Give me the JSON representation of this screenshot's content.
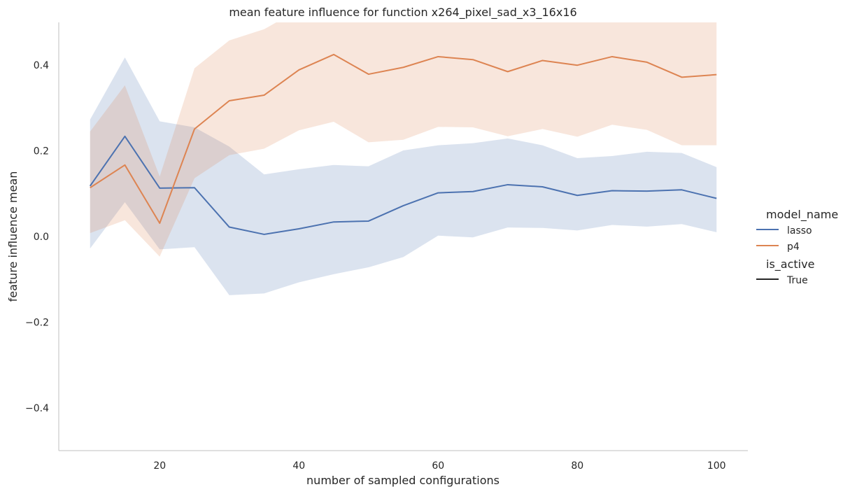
{
  "chart_data": {
    "type": "line",
    "title": "mean feature influence for function x264_pixel_sad_x3_16x16",
    "xlabel": "number of sampled configurations",
    "ylabel": "feature influence mean",
    "xlim": [
      5.5,
      104.5
    ],
    "ylim": [
      -0.5,
      0.5
    ],
    "xticks": [
      20,
      40,
      60,
      80,
      100
    ],
    "yticks": [
      -0.4,
      -0.2,
      0.0,
      0.2,
      0.4
    ],
    "xtick_labels": [
      "20",
      "40",
      "60",
      "80",
      "100"
    ],
    "ytick_labels": [
      "−0.4",
      "−0.2",
      "0.0",
      "0.2",
      "0.4"
    ],
    "x": [
      10,
      15,
      20,
      25,
      30,
      35,
      40,
      45,
      50,
      55,
      60,
      65,
      70,
      75,
      80,
      85,
      90,
      95,
      100
    ],
    "series": [
      {
        "name": "lasso",
        "color": "#4c72b0",
        "values": [
          0.118,
          0.234,
          0.113,
          0.114,
          0.022,
          0.005,
          0.018,
          0.034,
          0.036,
          0.072,
          0.102,
          0.105,
          0.121,
          0.116,
          0.096,
          0.107,
          0.106,
          0.109,
          0.089
        ],
        "ci_low": [
          -0.028,
          0.08,
          -0.03,
          -0.025,
          -0.137,
          -0.133,
          -0.107,
          -0.088,
          -0.072,
          -0.048,
          0.002,
          -0.002,
          0.021,
          0.02,
          0.014,
          0.027,
          0.023,
          0.029,
          0.01
        ],
        "ci_high": [
          0.273,
          0.418,
          0.269,
          0.255,
          0.21,
          0.145,
          0.157,
          0.167,
          0.164,
          0.201,
          0.213,
          0.218,
          0.229,
          0.213,
          0.183,
          0.188,
          0.198,
          0.195,
          0.162
        ]
      },
      {
        "name": "p4",
        "color": "#dd8452",
        "values": [
          0.114,
          0.167,
          0.031,
          0.251,
          0.317,
          0.33,
          0.389,
          0.425,
          0.379,
          0.395,
          0.42,
          0.413,
          0.385,
          0.411,
          0.4,
          0.42,
          0.407,
          0.372,
          0.378
        ],
        "ci_low": [
          0.008,
          0.038,
          -0.047,
          0.136,
          0.19,
          0.205,
          0.248,
          0.268,
          0.22,
          0.226,
          0.256,
          0.255,
          0.234,
          0.251,
          0.233,
          0.261,
          0.249,
          0.213,
          0.213
        ],
        "ci_high": [
          0.245,
          0.353,
          0.14,
          0.393,
          0.458,
          0.484,
          0.53,
          0.6,
          0.56,
          0.56,
          0.6,
          0.6,
          0.56,
          0.6,
          0.56,
          0.6,
          0.56,
          0.53,
          0.53
        ]
      }
    ],
    "legend": {
      "position": "right",
      "hue_title": "model_name",
      "entries": [
        "lasso",
        "p4"
      ],
      "style_title": "is_active",
      "style_entries": [
        "True"
      ],
      "style_color": "#262626"
    },
    "grid": false,
    "band_opacity": 0.2
  }
}
